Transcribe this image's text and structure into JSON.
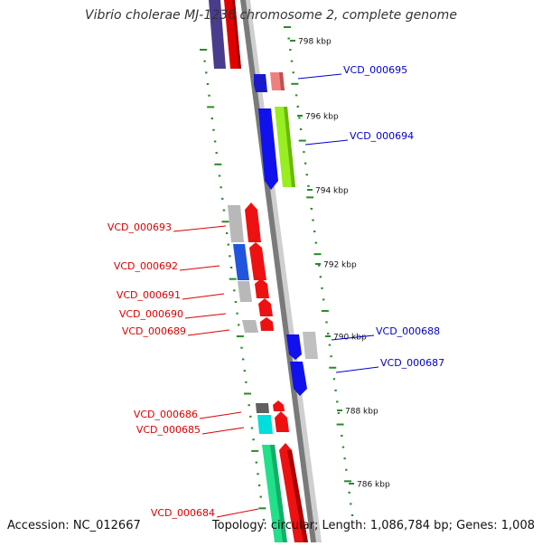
{
  "title": "Vibrio cholerae MJ-1236 chromosome 2, complete genome",
  "footer": {
    "accession": "Accession: NC_012667",
    "topology": "Topology: circular; Length: 1,086,784 bp; Genes: 1,008"
  },
  "ticks": [
    "798 kbp",
    "796 kbp",
    "794 kbp",
    "792 kbp",
    "790 kbp",
    "788 kbp",
    "786 kbp"
  ],
  "genes": [
    {
      "label": "VCD_000695",
      "strand": "reverse",
      "color": "#0000cc"
    },
    {
      "label": "VCD_000694",
      "strand": "reverse",
      "color": "#0000cc"
    },
    {
      "label": "VCD_000693",
      "strand": "forward",
      "color": "#dd0000"
    },
    {
      "label": "VCD_000692",
      "strand": "forward",
      "color": "#dd0000"
    },
    {
      "label": "VCD_000691",
      "strand": "forward",
      "color": "#dd0000"
    },
    {
      "label": "VCD_000690",
      "strand": "forward",
      "color": "#dd0000"
    },
    {
      "label": "VCD_000689",
      "strand": "forward",
      "color": "#dd0000"
    },
    {
      "label": "VCD_000688",
      "strand": "reverse",
      "color": "#0000cc"
    },
    {
      "label": "VCD_000687",
      "strand": "reverse",
      "color": "#0000cc"
    },
    {
      "label": "VCD_000686",
      "strand": "forward",
      "color": "#dd0000"
    },
    {
      "label": "VCD_000685",
      "strand": "forward",
      "color": "#dd0000"
    },
    {
      "label": "VCD_000684",
      "strand": "forward",
      "color": "#dd0000"
    }
  ]
}
